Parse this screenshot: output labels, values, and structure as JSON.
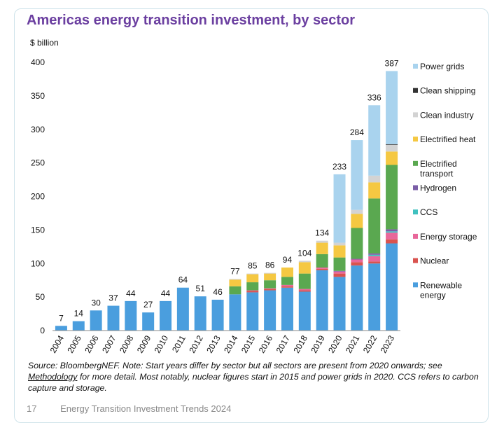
{
  "page": {
    "footer_page": "17",
    "footer_title": "Energy Transition Investment Trends 2024"
  },
  "source_note": {
    "text1": "Source: BloombergNEF. Note: Start years differ by sector but all sectors are present from 2020 onwards; see ",
    "link": "Methodology",
    "text2": " for more detail. Most notably, nuclear figures start in 2015 and power grids in 2020. CCS refers to carbon capture and storage."
  },
  "chart_data": {
    "type": "bar",
    "stacked": true,
    "title": "Americas energy transition investment, by sector",
    "ylabel": "$ billion",
    "ylim": [
      0,
      400
    ],
    "yticks": [
      0,
      50,
      100,
      150,
      200,
      250,
      300,
      350,
      400
    ],
    "grid": false,
    "legend_position": "right",
    "categories": [
      "2004",
      "2005",
      "2006",
      "2007",
      "2008",
      "2009",
      "2010",
      "2011",
      "2012",
      "2013",
      "2014",
      "2015",
      "2016",
      "2017",
      "2018",
      "2019",
      "2020",
      "2021",
      "2022",
      "2023"
    ],
    "totals": [
      7,
      14,
      30,
      37,
      44,
      27,
      44,
      64,
      51,
      46,
      77,
      85,
      86,
      94,
      104,
      134,
      233,
      284,
      336,
      387
    ],
    "series": [
      {
        "name": "Renewable energy",
        "color": "#4a9ede",
        "values": [
          7,
          14,
          30,
          37,
          44,
          27,
          44,
          64,
          51,
          46,
          54,
          57,
          60,
          64,
          58,
          90,
          80,
          97,
          100,
          130
        ]
      },
      {
        "name": "Nuclear",
        "color": "#d9534f",
        "values": [
          0,
          0,
          0,
          0,
          0,
          0,
          0,
          0,
          0,
          0,
          0,
          2,
          2,
          2,
          2,
          2,
          5,
          5,
          3,
          6
        ]
      },
      {
        "name": "Energy storage",
        "color": "#e8679a",
        "values": [
          0,
          0,
          0,
          0,
          0,
          0,
          0,
          0,
          0,
          0,
          0,
          1,
          1,
          2,
          2,
          2,
          3,
          4,
          8,
          10
        ]
      },
      {
        "name": "CCS",
        "color": "#3fc1bf",
        "values": [
          0,
          0,
          0,
          0,
          0,
          0,
          0,
          0,
          0,
          0,
          0,
          0,
          0,
          0,
          0,
          0,
          0,
          0,
          2,
          2
        ]
      },
      {
        "name": "Hydrogen",
        "color": "#7b5ea7",
        "values": [
          0,
          0,
          0,
          0,
          0,
          0,
          0,
          0,
          0,
          0,
          0,
          0,
          0,
          0,
          0,
          0,
          1,
          1,
          2,
          3
        ]
      },
      {
        "name": "Electrified transport",
        "color": "#5aa850",
        "values": [
          0,
          0,
          0,
          0,
          0,
          0,
          0,
          0,
          0,
          0,
          12,
          12,
          12,
          12,
          23,
          20,
          20,
          46,
          82,
          96
        ]
      },
      {
        "name": "Electrified heat",
        "color": "#f5c842",
        "values": [
          0,
          0,
          0,
          0,
          0,
          0,
          0,
          0,
          0,
          0,
          10,
          12,
          10,
          14,
          17,
          17,
          18,
          21,
          24,
          20
        ]
      },
      {
        "name": "Clean industry",
        "color": "#d3d3d3",
        "values": [
          0,
          0,
          0,
          0,
          0,
          0,
          0,
          0,
          0,
          0,
          1,
          1,
          1,
          0,
          2,
          3,
          4,
          6,
          10,
          10
        ]
      },
      {
        "name": "Clean shipping",
        "color": "#333333",
        "values": [
          0,
          0,
          0,
          0,
          0,
          0,
          0,
          0,
          0,
          0,
          0,
          0,
          0,
          0,
          0,
          0,
          0,
          0,
          0,
          1
        ]
      },
      {
        "name": "Power grids",
        "color": "#a9d3ee",
        "values": [
          0,
          0,
          0,
          0,
          0,
          0,
          0,
          0,
          0,
          0,
          0,
          0,
          0,
          0,
          0,
          0,
          102,
          104,
          105,
          109
        ]
      }
    ],
    "legend": [
      {
        "label": "Power grids",
        "color": "#a9d3ee"
      },
      {
        "label": "Clean shipping",
        "color": "#333333"
      },
      {
        "label": "Clean industry",
        "color": "#d3d3d3"
      },
      {
        "label": "Electrified heat",
        "color": "#f5c842"
      },
      {
        "label": "Electrified\ntransport",
        "color": "#5aa850"
      },
      {
        "label": "Hydrogen",
        "color": "#7b5ea7"
      },
      {
        "label": "CCS",
        "color": "#3fc1bf"
      },
      {
        "label": "Energy storage",
        "color": "#e8679a"
      },
      {
        "label": "Nuclear",
        "color": "#d9534f"
      },
      {
        "label": "Renewable\nenergy",
        "color": "#4a9ede"
      }
    ]
  }
}
